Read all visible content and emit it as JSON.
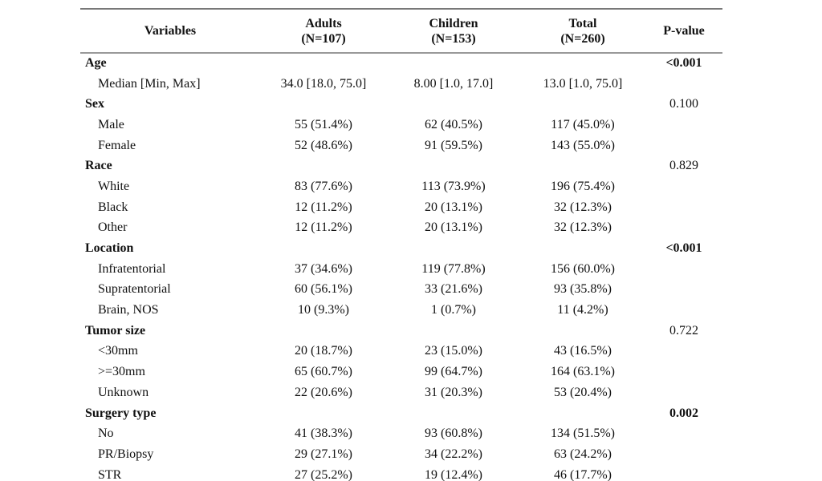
{
  "table": {
    "columns": [
      {
        "label": "Variables",
        "sublabel": ""
      },
      {
        "label": "Adults",
        "sublabel": "(N=107)"
      },
      {
        "label": "Children",
        "sublabel": "(N=153)"
      },
      {
        "label": "Total",
        "sublabel": "(N=260)"
      },
      {
        "label": "P-value",
        "sublabel": ""
      }
    ],
    "rows": [
      {
        "label": "Age",
        "group": true,
        "adults": "",
        "children": "",
        "total": "",
        "p": "<0.001",
        "pbold": true
      },
      {
        "label": "Median [Min, Max]",
        "group": false,
        "adults": "34.0 [18.0, 75.0]",
        "children": "8.00 [1.0, 17.0]",
        "total": "13.0 [1.0, 75.0]",
        "p": "",
        "pbold": false
      },
      {
        "label": "Sex",
        "group": true,
        "adults": "",
        "children": "",
        "total": "",
        "p": "0.100",
        "pbold": false
      },
      {
        "label": "Male",
        "group": false,
        "adults": "55 (51.4%)",
        "children": "62 (40.5%)",
        "total": "117 (45.0%)",
        "p": "",
        "pbold": false
      },
      {
        "label": "Female",
        "group": false,
        "adults": "52 (48.6%)",
        "children": "91 (59.5%)",
        "total": "143 (55.0%)",
        "p": "",
        "pbold": false
      },
      {
        "label": "Race",
        "group": true,
        "adults": "",
        "children": "",
        "total": "",
        "p": "0.829",
        "pbold": false
      },
      {
        "label": "White",
        "group": false,
        "adults": "83 (77.6%)",
        "children": "113 (73.9%)",
        "total": "196 (75.4%)",
        "p": "",
        "pbold": false
      },
      {
        "label": "Black",
        "group": false,
        "adults": "12 (11.2%)",
        "children": "20 (13.1%)",
        "total": "32 (12.3%)",
        "p": "",
        "pbold": false
      },
      {
        "label": "Other",
        "group": false,
        "adults": "12 (11.2%)",
        "children": "20 (13.1%)",
        "total": "32 (12.3%)",
        "p": "",
        "pbold": false
      },
      {
        "label": "Location",
        "group": true,
        "adults": "",
        "children": "",
        "total": "",
        "p": "<0.001",
        "pbold": true
      },
      {
        "label": "Infratentorial",
        "group": false,
        "adults": "37 (34.6%)",
        "children": "119 (77.8%)",
        "total": "156 (60.0%)",
        "p": "",
        "pbold": false
      },
      {
        "label": "Supratentorial",
        "group": false,
        "adults": "60 (56.1%)",
        "children": "33 (21.6%)",
        "total": "93 (35.8%)",
        "p": "",
        "pbold": false
      },
      {
        "label": "Brain, NOS",
        "group": false,
        "adults": "10 (9.3%)",
        "children": "1 (0.7%)",
        "total": "11 (4.2%)",
        "p": "",
        "pbold": false
      },
      {
        "label": "Tumor size",
        "group": true,
        "adults": "",
        "children": "",
        "total": "",
        "p": "0.722",
        "pbold": false
      },
      {
        "label": "<30mm",
        "group": false,
        "adults": "20 (18.7%)",
        "children": "23 (15.0%)",
        "total": "43 (16.5%)",
        "p": "",
        "pbold": false
      },
      {
        "label": ">=30mm",
        "group": false,
        "adults": "65 (60.7%)",
        "children": "99 (64.7%)",
        "total": "164 (63.1%)",
        "p": "",
        "pbold": false
      },
      {
        "label": "Unknown",
        "group": false,
        "adults": "22 (20.6%)",
        "children": "31 (20.3%)",
        "total": "53 (20.4%)",
        "p": "",
        "pbold": false
      },
      {
        "label": "Surgery type",
        "group": true,
        "adults": "",
        "children": "",
        "total": "",
        "p": "0.002",
        "pbold": true
      },
      {
        "label": "No",
        "group": false,
        "adults": "41 (38.3%)",
        "children": "93 (60.8%)",
        "total": "134 (51.5%)",
        "p": "",
        "pbold": false
      },
      {
        "label": "PR/Biopsy",
        "group": false,
        "adults": "29 (27.1%)",
        "children": "34 (22.2%)",
        "total": "63 (24.2%)",
        "p": "",
        "pbold": false
      },
      {
        "label": "STR",
        "group": false,
        "adults": "27 (25.2%)",
        "children": "19 (12.4%)",
        "total": "46 (17.7%)",
        "p": "",
        "pbold": false
      }
    ]
  },
  "colors": {
    "background": "#ffffff",
    "text": "#111111",
    "rule_top": "#787878",
    "rule_header_bottom": "#999999"
  }
}
